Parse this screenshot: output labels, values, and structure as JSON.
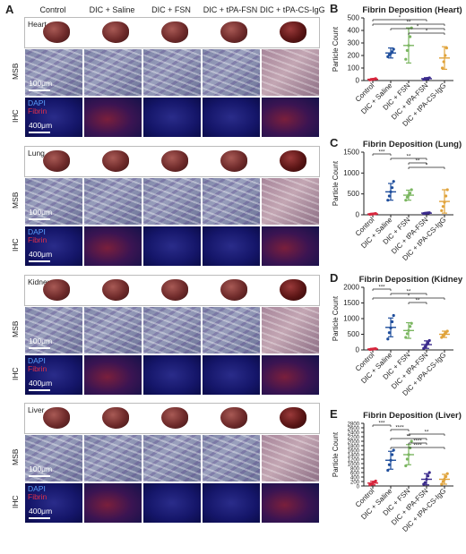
{
  "panel_a": {
    "letter": "A",
    "columns": [
      "Control",
      "DIC + Saline",
      "DIC + FSN",
      "DIC + tPA-FSN",
      "DIC + tPA-CS-IgG"
    ],
    "rows": [
      {
        "organ": "Heart",
        "msb_label": "MSB",
        "ihc_label": "IHC",
        "msb_scale": "100μm",
        "ihc_scale": "400μm",
        "dapi": "DAPI",
        "fibrin": "Fibrin"
      },
      {
        "organ": "Lung",
        "msb_label": "MSB",
        "ihc_label": "IHC",
        "msb_scale": "100μm",
        "ihc_scale": "400μm",
        "dapi": "DAPI",
        "fibrin": "Fibrin"
      },
      {
        "organ": "Kidney",
        "msb_label": "MSB",
        "ihc_label": "IHC",
        "msb_scale": "100μm",
        "ihc_scale": "400μm",
        "dapi": "DAPI",
        "fibrin": "Fibrin"
      },
      {
        "organ": "Liver",
        "msb_label": "MSB",
        "ihc_label": "IHC",
        "msb_scale": "100μm",
        "ihc_scale": "400μm",
        "dapi": "DAPI",
        "fibrin": "Fibrin"
      }
    ]
  },
  "chart_data": [
    {
      "letter": "B",
      "type": "scatter",
      "title": "Fibrin Deposition (Heart)",
      "ylabel": "Particle Count",
      "categories": [
        "Control",
        "DIC + Saline",
        "DIC + FSN",
        "DIC + tPA-FSN",
        "DIC + tPA-CS-IgG"
      ],
      "colors": [
        "#d7263d",
        "#1f4e9c",
        "#7bb661",
        "#3a2a8c",
        "#e0a33b"
      ],
      "yticks": [
        "0",
        "100",
        "200",
        "300",
        "400",
        "500"
      ],
      "ylim": [
        0,
        500
      ],
      "means": [
        10,
        220,
        280,
        15,
        180
      ],
      "sds": [
        5,
        40,
        140,
        8,
        90
      ],
      "points": [
        [
          5,
          8,
          10,
          12,
          15
        ],
        [
          190,
          205,
          215,
          230,
          250
        ],
        [
          170,
          240,
          280,
          350,
          420
        ],
        [
          8,
          12,
          15,
          18,
          22
        ],
        [
          100,
          150,
          200,
          260
        ]
      ],
      "significance": [
        {
          "from": 0,
          "to": 3,
          "label": "*"
        },
        {
          "from": 0,
          "to": 4,
          "label": "**"
        },
        {
          "from": 1,
          "to": 4,
          "label": "*"
        },
        {
          "from": 2,
          "to": 4,
          "label": "*"
        }
      ]
    },
    {
      "letter": "C",
      "type": "scatter",
      "title": "Fibrin Deposition (Lung)",
      "ylabel": "Particle Count",
      "categories": [
        "Control",
        "DIC + Saline",
        "DIC + FSN",
        "DIC + tPA-FSN",
        "DIC + tPA-CS-IgG"
      ],
      "colors": [
        "#d7263d",
        "#1f4e9c",
        "#7bb661",
        "#3a2a8c",
        "#e0a33b"
      ],
      "yticks": [
        "0",
        "500",
        "1000",
        "1500"
      ],
      "ylim": [
        0,
        1500
      ],
      "means": [
        20,
        550,
        470,
        40,
        320
      ],
      "sds": [
        15,
        200,
        120,
        15,
        280
      ],
      "points": [
        [
          10,
          15,
          20,
          25,
          30
        ],
        [
          350,
          450,
          550,
          650,
          800
        ],
        [
          350,
          420,
          470,
          520,
          600
        ],
        [
          30,
          35,
          40,
          45,
          50
        ],
        [
          100,
          200,
          300,
          450,
          600
        ]
      ],
      "significance": [
        {
          "from": 0,
          "to": 1,
          "label": "***"
        },
        {
          "from": 1,
          "to": 3,
          "label": "**"
        },
        {
          "from": 2,
          "to": 3,
          "label": "**"
        },
        {
          "from": 2,
          "to": 4,
          "label": "*"
        }
      ]
    },
    {
      "letter": "D",
      "type": "scatter",
      "title": "Fibrin Deposition (Kidney)",
      "ylabel": "Particle Count",
      "categories": [
        "Control",
        "DIC + Saline",
        "DIC + FSN",
        "DIC + tPA-FSN",
        "DIC + tPA-CS-IgG"
      ],
      "colors": [
        "#d7263d",
        "#1f4e9c",
        "#7bb661",
        "#3a2a8c",
        "#e0a33b"
      ],
      "yticks": [
        "0",
        "500",
        "1000",
        "1500",
        "2000"
      ],
      "ylim": [
        0,
        2000
      ],
      "means": [
        30,
        720,
        620,
        170,
        500
      ],
      "sds": [
        20,
        300,
        250,
        120,
        100
      ],
      "points": [
        [
          15,
          20,
          30,
          35,
          40
        ],
        [
          350,
          550,
          700,
          900,
          1100
        ],
        [
          400,
          520,
          620,
          750,
          850
        ],
        [
          50,
          100,
          170,
          230,
          300
        ],
        [
          400,
          460,
          500,
          560,
          600
        ]
      ],
      "significance": [
        {
          "from": 0,
          "to": 1,
          "label": "***"
        },
        {
          "from": 1,
          "to": 3,
          "label": "**"
        },
        {
          "from": 0,
          "to": 4,
          "label": "*"
        },
        {
          "from": 2,
          "to": 3,
          "label": "**"
        }
      ]
    },
    {
      "letter": "E",
      "type": "scatter",
      "title": "Fibrin Deposition (Liver)",
      "ylabel": "Particle Count",
      "categories": [
        "Control",
        "DIC + Saline",
        "DIC + FSN",
        "DIC + tPA-FSN",
        "DIC + tPA-CS-IgG"
      ],
      "colors": [
        "#d7263d",
        "#1f4e9c",
        "#7bb661",
        "#3a2a8c",
        "#e0a33b"
      ],
      "yticks": [
        "0",
        "200",
        "400",
        "600",
        "800",
        "1000",
        "1200",
        "1400",
        "1600",
        "1800",
        "2000",
        "2200",
        "2400",
        "2600",
        "2800"
      ],
      "ylim": [
        0,
        2800
      ],
      "means": [
        130,
        1150,
        1400,
        300,
        300
      ],
      "sds": [
        80,
        400,
        450,
        250,
        220
      ],
      "points": [
        [
          50,
          80,
          130,
          180,
          220
        ],
        [
          700,
          950,
          1150,
          1400,
          1600
        ],
        [
          900,
          1200,
          1400,
          1700,
          2000
        ],
        [
          80,
          150,
          300,
          450,
          600
        ],
        [
          80,
          200,
          300,
          420,
          550
        ]
      ],
      "significance": [
        {
          "from": 0,
          "to": 1,
          "label": "***"
        },
        {
          "from": 1,
          "to": 2,
          "label": "****"
        },
        {
          "from": 2,
          "to": 4,
          "label": "**"
        },
        {
          "from": 1,
          "to": 3,
          "label": "**"
        },
        {
          "from": 2,
          "to": 3,
          "label": "****"
        },
        {
          "from": 1,
          "to": 4,
          "label": "****"
        }
      ]
    }
  ]
}
